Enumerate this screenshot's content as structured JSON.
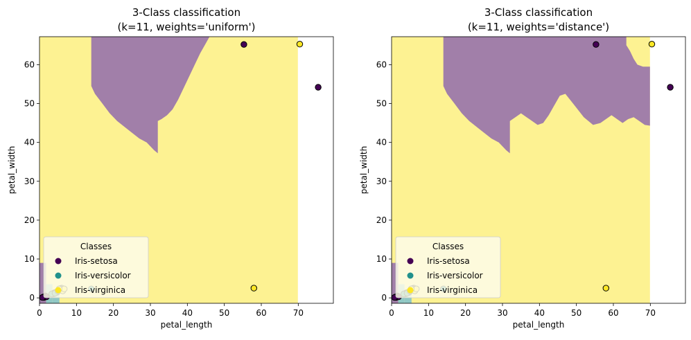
{
  "colors": {
    "setosa": "#440154",
    "versicolor": "#21918c",
    "virginica": "#fde725",
    "region_setosa": "#a17fa9",
    "region_versicolor": "#90c8c5",
    "region_virginica": "#fdf292",
    "legend_bg": "#fdfbe9"
  },
  "chart_data": [
    {
      "type": "scatter",
      "title": "3-Class classification\n(k=11, weights='uniform')",
      "title_lines": [
        "3-Class classification",
        "(k=11, weights='uniform')"
      ],
      "xlabel": "petal_length",
      "ylabel": "petal_width",
      "xlim": [
        0,
        79.5
      ],
      "ylim": [
        -1.4,
        67.2
      ],
      "xticks": [
        0,
        10,
        20,
        30,
        40,
        50,
        60,
        70
      ],
      "yticks": [
        0,
        10,
        20,
        30,
        40,
        50,
        60
      ],
      "legend": {
        "title": "Classes",
        "position": "lower-left",
        "entries": [
          {
            "label": "Iris-setosa",
            "class": "setosa"
          },
          {
            "label": "Iris-versicolor",
            "class": "versicolor"
          },
          {
            "label": "Iris-virginica",
            "class": "virginica"
          }
        ]
      },
      "background_class": "virginica",
      "background_xmax": 69.9,
      "setosa_region_boundary": [
        [
          14,
          67.2
        ],
        [
          46,
          67.2
        ],
        [
          45,
          65.5
        ],
        [
          43.5,
          63
        ],
        [
          42,
          60
        ],
        [
          40.5,
          57
        ],
        [
          39,
          54
        ],
        [
          37.5,
          51
        ],
        [
          36,
          48.5
        ],
        [
          34.5,
          47
        ],
        [
          33,
          46
        ],
        [
          32,
          45.5
        ],
        [
          32,
          37.2
        ],
        [
          31,
          38
        ],
        [
          29,
          40
        ],
        [
          27,
          41
        ],
        [
          25,
          42.5
        ],
        [
          23,
          44
        ],
        [
          21,
          45.5
        ],
        [
          19,
          47.5
        ],
        [
          17,
          50
        ],
        [
          15,
          52.5
        ],
        [
          14,
          54.5
        ]
      ],
      "corner_regions": [
        {
          "class": "setosa",
          "x": [
            0,
            1.8
          ],
          "y": [
            -1.4,
            9
          ]
        },
        {
          "class": "versicolor",
          "x": [
            1.8,
            3.5
          ],
          "y": [
            -1.4,
            3.5
          ]
        },
        {
          "class": "versicolor",
          "x": [
            3.5,
            5.4
          ],
          "y": [
            -1.4,
            1.5
          ]
        }
      ],
      "top_left_notch": {
        "class": "virginica",
        "x": [
          0,
          5.5
        ],
        "y": [
          62.5,
          67.2
        ]
      },
      "points": [
        {
          "x": 55.3,
          "y": 65.2,
          "class": "setosa"
        },
        {
          "x": 75.4,
          "y": 54.2,
          "class": "setosa"
        },
        {
          "x": 70.4,
          "y": 65.3,
          "class": "virginica"
        },
        {
          "x": 58.0,
          "y": 2.5,
          "class": "virginica"
        },
        {
          "x": 14.0,
          "y": 2.3,
          "class": "versicolor"
        },
        {
          "x": 1.4,
          "y": 0.2,
          "class": "setosa"
        },
        {
          "x": 1.3,
          "y": 0.3,
          "class": "setosa"
        },
        {
          "x": 1.5,
          "y": 0.4,
          "class": "setosa"
        },
        {
          "x": 1.2,
          "y": 0.1,
          "class": "setosa"
        },
        {
          "x": 1.6,
          "y": 0.5,
          "class": "setosa"
        },
        {
          "x": 1.0,
          "y": 0.2,
          "class": "setosa"
        },
        {
          "x": 1.9,
          "y": 0.3,
          "class": "setosa"
        },
        {
          "x": 0.8,
          "y": 0.1,
          "class": "setosa"
        },
        {
          "x": 3.5,
          "y": 1.0,
          "class": "versicolor"
        },
        {
          "x": 4.0,
          "y": 1.3,
          "class": "versicolor"
        },
        {
          "x": 4.5,
          "y": 1.5,
          "class": "versicolor"
        },
        {
          "x": 3.9,
          "y": 1.1,
          "class": "versicolor"
        },
        {
          "x": 4.7,
          "y": 1.4,
          "class": "versicolor"
        },
        {
          "x": 3.3,
          "y": 1.0,
          "class": "versicolor"
        },
        {
          "x": 4.2,
          "y": 1.2,
          "class": "versicolor"
        },
        {
          "x": 5.0,
          "y": 1.7,
          "class": "versicolor"
        },
        {
          "x": 5.5,
          "y": 2.0,
          "class": "virginica"
        },
        {
          "x": 6.0,
          "y": 2.5,
          "class": "virginica"
        },
        {
          "x": 5.1,
          "y": 1.9,
          "class": "virginica"
        },
        {
          "x": 5.8,
          "y": 2.2,
          "class": "virginica"
        },
        {
          "x": 6.3,
          "y": 1.8,
          "class": "virginica"
        },
        {
          "x": 5.6,
          "y": 2.4,
          "class": "virginica"
        },
        {
          "x": 6.7,
          "y": 2.3,
          "class": "virginica"
        },
        {
          "x": 5.3,
          "y": 2.3,
          "class": "virginica"
        }
      ]
    },
    {
      "type": "scatter",
      "title": "3-Class classification\n(k=11, weights='distance')",
      "title_lines": [
        "3-Class classification",
        "(k=11, weights='distance')"
      ],
      "xlabel": "petal_length",
      "ylabel": "petal_width",
      "xlim": [
        0,
        79.5
      ],
      "ylim": [
        -1.4,
        67.2
      ],
      "xticks": [
        0,
        10,
        20,
        30,
        40,
        50,
        60,
        70
      ],
      "yticks": [
        0,
        10,
        20,
        30,
        40,
        50,
        60
      ],
      "legend": {
        "title": "Classes",
        "position": "lower-left",
        "entries": [
          {
            "label": "Iris-setosa",
            "class": "setosa"
          },
          {
            "label": "Iris-versicolor",
            "class": "versicolor"
          },
          {
            "label": "Iris-virginica",
            "class": "virginica"
          }
        ]
      },
      "background_class": "virginica",
      "background_xmax": 69.9,
      "setosa_region_boundary": [
        [
          14,
          67.2
        ],
        [
          63.5,
          67.2
        ],
        [
          63.5,
          65
        ],
        [
          64.5,
          63.5
        ],
        [
          65.5,
          61.5
        ],
        [
          66.5,
          60
        ],
        [
          68,
          59.5
        ],
        [
          69.9,
          59.5
        ],
        [
          69.9,
          44.3
        ],
        [
          68.5,
          44.5
        ],
        [
          67,
          45.5
        ],
        [
          65.5,
          46.5
        ],
        [
          64,
          46
        ],
        [
          62.5,
          45
        ],
        [
          61,
          46
        ],
        [
          59.5,
          47
        ],
        [
          58,
          46
        ],
        [
          56.5,
          45
        ],
        [
          54.5,
          44.5
        ],
        [
          52,
          46.5
        ],
        [
          49.5,
          49.5
        ],
        [
          47,
          52.5
        ],
        [
          45.5,
          52
        ],
        [
          44,
          49.5
        ],
        [
          42.5,
          47
        ],
        [
          41,
          45
        ],
        [
          39.5,
          44.5
        ],
        [
          38,
          45.5
        ],
        [
          36.5,
          46.5
        ],
        [
          35,
          47.5
        ],
        [
          33.5,
          46.5
        ],
        [
          32,
          45.5
        ],
        [
          32,
          37.2
        ],
        [
          31,
          38
        ],
        [
          29,
          40
        ],
        [
          27,
          41
        ],
        [
          25,
          42.5
        ],
        [
          23,
          44
        ],
        [
          21,
          45.5
        ],
        [
          19,
          47.5
        ],
        [
          17,
          50
        ],
        [
          15,
          52.5
        ],
        [
          14,
          54.5
        ]
      ],
      "corner_regions": [
        {
          "class": "setosa",
          "x": [
            0,
            1.8
          ],
          "y": [
            -1.4,
            9
          ]
        },
        {
          "class": "versicolor",
          "x": [
            1.8,
            3.5
          ],
          "y": [
            -1.4,
            3.5
          ]
        },
        {
          "class": "versicolor",
          "x": [
            3.5,
            5.4
          ],
          "y": [
            -1.4,
            1.5
          ]
        }
      ],
      "top_left_notch": {
        "class": "virginica",
        "x": [
          0,
          5.5
        ],
        "y": [
          62.5,
          67.2
        ]
      },
      "points": [
        {
          "x": 55.3,
          "y": 65.2,
          "class": "setosa"
        },
        {
          "x": 75.4,
          "y": 54.2,
          "class": "setosa"
        },
        {
          "x": 70.4,
          "y": 65.3,
          "class": "virginica"
        },
        {
          "x": 58.0,
          "y": 2.5,
          "class": "virginica"
        },
        {
          "x": 14.0,
          "y": 2.3,
          "class": "versicolor"
        },
        {
          "x": 1.4,
          "y": 0.2,
          "class": "setosa"
        },
        {
          "x": 1.3,
          "y": 0.3,
          "class": "setosa"
        },
        {
          "x": 1.5,
          "y": 0.4,
          "class": "setosa"
        },
        {
          "x": 1.2,
          "y": 0.1,
          "class": "setosa"
        },
        {
          "x": 1.6,
          "y": 0.5,
          "class": "setosa"
        },
        {
          "x": 1.0,
          "y": 0.2,
          "class": "setosa"
        },
        {
          "x": 1.9,
          "y": 0.3,
          "class": "setosa"
        },
        {
          "x": 0.8,
          "y": 0.1,
          "class": "setosa"
        },
        {
          "x": 3.5,
          "y": 1.0,
          "class": "versicolor"
        },
        {
          "x": 4.0,
          "y": 1.3,
          "class": "versicolor"
        },
        {
          "x": 4.5,
          "y": 1.5,
          "class": "versicolor"
        },
        {
          "x": 3.9,
          "y": 1.1,
          "class": "versicolor"
        },
        {
          "x": 4.7,
          "y": 1.4,
          "class": "versicolor"
        },
        {
          "x": 3.3,
          "y": 1.0,
          "class": "versicolor"
        },
        {
          "x": 4.2,
          "y": 1.2,
          "class": "versicolor"
        },
        {
          "x": 5.0,
          "y": 1.7,
          "class": "versicolor"
        },
        {
          "x": 5.5,
          "y": 2.0,
          "class": "virginica"
        },
        {
          "x": 6.0,
          "y": 2.5,
          "class": "virginica"
        },
        {
          "x": 5.1,
          "y": 1.9,
          "class": "virginica"
        },
        {
          "x": 5.8,
          "y": 2.2,
          "class": "virginica"
        },
        {
          "x": 6.3,
          "y": 1.8,
          "class": "virginica"
        },
        {
          "x": 5.6,
          "y": 2.4,
          "class": "virginica"
        },
        {
          "x": 6.7,
          "y": 2.3,
          "class": "virginica"
        },
        {
          "x": 5.3,
          "y": 2.3,
          "class": "virginica"
        }
      ]
    }
  ]
}
